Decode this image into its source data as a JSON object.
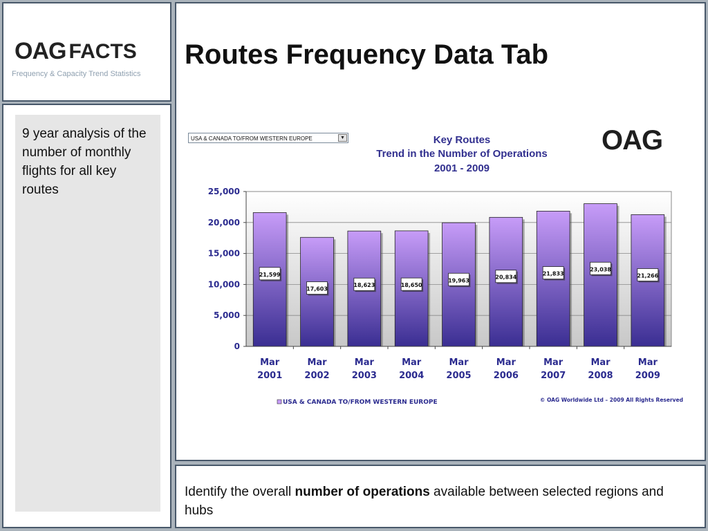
{
  "logo": {
    "brand": "OAG",
    "word": "FACTS",
    "tagline": "Frequency & Capacity Trend Statistics"
  },
  "page_title": "Routes Frequency Data Tab",
  "side_note": "9 year analysis of the number of monthly flights for all key routes",
  "footer": {
    "before": "Identify the overall ",
    "bold": "number of operations",
    "after": " available between selected regions and hubs"
  },
  "route_select": {
    "value": "USA & CANADA TO/FROM WESTERN EUROPE"
  },
  "chart_logo": "OAG",
  "copyright": "© OAG Worldwide Ltd – 2009 All Rights Reserved",
  "colors": {
    "bar_top": "#c79cf8",
    "bar_bottom": "#3a2e92",
    "title": "#32308f",
    "axis_text": "#2b2b8f",
    "border": "#48586a"
  },
  "chart_data": {
    "type": "bar",
    "title": [
      "Key Routes",
      "Trend in the Number of Operations",
      "2001 - 2009"
    ],
    "categories": [
      [
        "Mar",
        "2001"
      ],
      [
        "Mar",
        "2002"
      ],
      [
        "Mar",
        "2003"
      ],
      [
        "Mar",
        "2004"
      ],
      [
        "Mar",
        "2005"
      ],
      [
        "Mar",
        "2006"
      ],
      [
        "Mar",
        "2007"
      ],
      [
        "Mar",
        "2008"
      ],
      [
        "Mar",
        "2009"
      ]
    ],
    "series": [
      {
        "name": "USA & CANADA TO/FROM WESTERN EUROPE",
        "values": [
          21599,
          17603,
          18623,
          18650,
          19963,
          20834,
          21833,
          23038,
          21266
        ]
      }
    ],
    "data_labels": [
      "21,599",
      "17,603",
      "18,623",
      "18,650",
      "19,963",
      "20,834",
      "21,833",
      "23,038",
      "21,266"
    ],
    "yticks": [
      "0",
      "5,000",
      "10,000",
      "15,000",
      "20,000",
      "25,000"
    ],
    "ylim": [
      0,
      25000
    ],
    "grid": true,
    "legend": "bottom"
  }
}
